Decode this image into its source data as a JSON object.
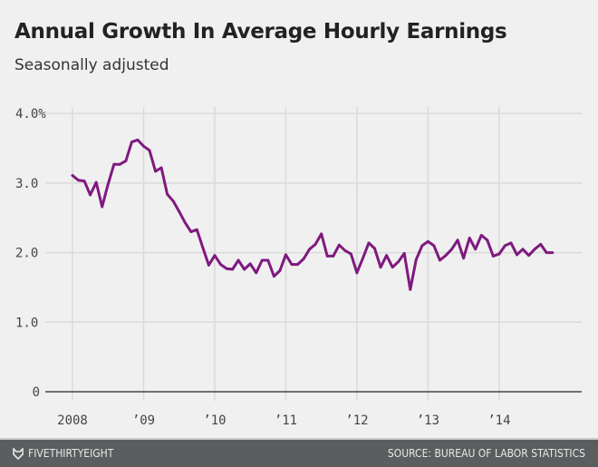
{
  "chart_data": {
    "type": "line",
    "title": "Annual Growth In Average Hourly Earnings",
    "subtitle": "Seasonally adjusted",
    "xlabel": "",
    "ylabel": "",
    "x_start": "2008-01",
    "x_frequency": "monthly",
    "xlim": [
      "2008-01",
      "2014-12"
    ],
    "ylim": [
      0,
      4.0
    ],
    "y_ticks": [
      0,
      1.0,
      2.0,
      3.0,
      4.0
    ],
    "y_tick_labels": [
      "0",
      "1.0",
      "2.0",
      "3.0",
      "4.0%"
    ],
    "x_tick_labels": [
      "2008",
      "’09",
      "’10",
      "’11",
      "’12",
      "’13",
      "’14"
    ],
    "grid": true,
    "line_color": "#7f1a7e",
    "values": [
      3.11,
      3.04,
      3.03,
      2.83,
      3.01,
      2.66,
      2.98,
      3.27,
      3.27,
      3.32,
      3.59,
      3.62,
      3.53,
      3.47,
      3.17,
      3.22,
      2.84,
      2.74,
      2.59,
      2.43,
      2.3,
      2.33,
      2.07,
      1.82,
      1.96,
      1.83,
      1.77,
      1.76,
      1.89,
      1.76,
      1.84,
      1.71,
      1.89,
      1.89,
      1.66,
      1.74,
      1.97,
      1.83,
      1.83,
      1.91,
      2.05,
      2.12,
      2.27,
      1.95,
      1.95,
      2.11,
      2.03,
      1.98,
      1.71,
      1.92,
      2.14,
      2.06,
      1.79,
      1.96,
      1.79,
      1.87,
      1.99,
      1.47,
      1.9,
      2.1,
      2.16,
      2.1,
      1.89,
      1.96,
      2.05,
      2.18,
      1.92,
      2.21,
      2.05,
      2.25,
      2.18,
      1.95,
      1.98,
      2.1,
      2.14,
      1.97,
      2.05,
      1.96,
      2.05,
      2.12,
      2.0,
      2.0
    ]
  },
  "footer": {
    "brand": "FIVETHIRTYEIGHT",
    "source": "SOURCE: BUREAU OF LABOR STATISTICS"
  }
}
